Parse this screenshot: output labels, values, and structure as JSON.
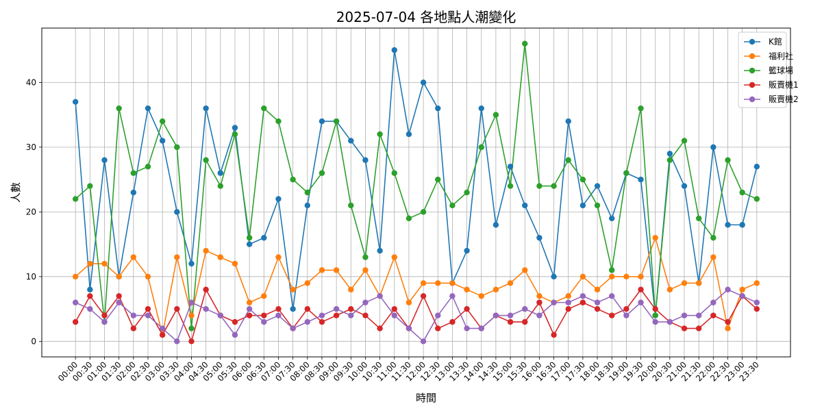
{
  "chart_data": {
    "type": "line",
    "title": "2025-07-04 各地點人潮變化",
    "xlabel": "時間",
    "ylabel": "人數",
    "ylim": [
      -2.4,
      48.4
    ],
    "yticks": [
      0,
      10,
      20,
      30,
      40
    ],
    "grid": true,
    "legend_position": "top-right",
    "x": [
      "00:00",
      "00:30",
      "01:00",
      "01:30",
      "02:00",
      "02:30",
      "03:00",
      "03:30",
      "04:00",
      "04:30",
      "05:00",
      "05:30",
      "06:00",
      "06:30",
      "07:00",
      "07:30",
      "08:00",
      "08:30",
      "09:00",
      "09:30",
      "10:00",
      "10:30",
      "11:00",
      "11:30",
      "12:00",
      "12:30",
      "13:00",
      "13:30",
      "14:00",
      "14:30",
      "15:00",
      "15:30",
      "16:00",
      "16:30",
      "17:00",
      "17:30",
      "18:00",
      "18:30",
      "19:00",
      "19:30",
      "20:00",
      "20:30",
      "21:00",
      "21:30",
      "22:00",
      "22:30",
      "23:00",
      "23:30"
    ],
    "series": [
      {
        "name": "K館",
        "color": "#1f77b4",
        "values": [
          37,
          8,
          28,
          10,
          23,
          36,
          31,
          20,
          12,
          36,
          26,
          33,
          15,
          16,
          22,
          5,
          21,
          34,
          34,
          31,
          28,
          14,
          45,
          32,
          40,
          36,
          9,
          14,
          36,
          18,
          27,
          21,
          16,
          10,
          34,
          21,
          24,
          19,
          26,
          25,
          4,
          29,
          24,
          9,
          30,
          18,
          18,
          27
        ]
      },
      {
        "name": "福利社",
        "color": "#ff7f0e",
        "values": [
          10,
          12,
          12,
          10,
          13,
          10,
          1,
          13,
          4,
          14,
          13,
          12,
          6,
          7,
          13,
          8,
          9,
          11,
          11,
          8,
          11,
          7,
          13,
          6,
          9,
          9,
          9,
          8,
          7,
          8,
          9,
          11,
          7,
          6,
          7,
          10,
          8,
          10,
          10,
          10,
          16,
          8,
          9,
          9,
          13,
          2,
          8,
          9
        ]
      },
      {
        "name": "籃球場",
        "color": "#2ca02c",
        "values": [
          22,
          24,
          3,
          36,
          26,
          27,
          34,
          30,
          2,
          28,
          24,
          32,
          16,
          36,
          34,
          25,
          23,
          26,
          34,
          21,
          13,
          32,
          26,
          19,
          20,
          25,
          21,
          23,
          30,
          35,
          24,
          46,
          24,
          24,
          28,
          25,
          21,
          11,
          26,
          36,
          4,
          28,
          31,
          19,
          16,
          28,
          23,
          22
        ]
      },
      {
        "name": "販賣機1",
        "color": "#d62728",
        "values": [
          3,
          7,
          4,
          7,
          2,
          5,
          1,
          5,
          0,
          8,
          4,
          3,
          4,
          4,
          5,
          2,
          5,
          3,
          4,
          5,
          4,
          2,
          5,
          2,
          7,
          2,
          3,
          5,
          2,
          4,
          3,
          3,
          6,
          1,
          5,
          6,
          5,
          4,
          5,
          8,
          5,
          3,
          2,
          2,
          4,
          3,
          7,
          5
        ]
      },
      {
        "name": "販賣機2",
        "color": "#9467bd",
        "values": [
          6,
          5,
          3,
          6,
          4,
          4,
          2,
          0,
          6,
          5,
          4,
          1,
          5,
          3,
          4,
          2,
          3,
          4,
          5,
          4,
          6,
          7,
          4,
          2,
          0,
          4,
          7,
          2,
          2,
          4,
          4,
          5,
          4,
          6,
          6,
          7,
          6,
          7,
          4,
          6,
          3,
          3,
          4,
          4,
          6,
          8,
          7,
          6
        ]
      }
    ]
  }
}
